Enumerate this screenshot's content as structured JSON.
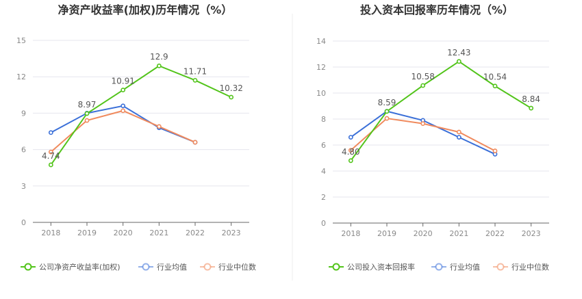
{
  "colors": {
    "company": "#52c41a",
    "industry_avg": "#3a6fd8",
    "industry_median": "#f08a5d",
    "grid": "#e6e6ee",
    "axis": "#666666",
    "divider": "#eeeeee"
  },
  "chart_data": [
    {
      "type": "line",
      "title": "净资产收益率(加权)历年情况（%）",
      "categories": [
        "2018",
        "2019",
        "2020",
        "2021",
        "2022",
        "2023"
      ],
      "yticks": [
        "0",
        "3",
        "6",
        "9",
        "12",
        "15"
      ],
      "ylim": [
        0,
        15
      ],
      "grid": true,
      "legend_position": "bottom",
      "series": [
        {
          "name": "公司净资产收益率(加权)",
          "key": "company",
          "values": [
            4.74,
            8.97,
            10.91,
            12.9,
            11.71,
            10.32
          ],
          "labels": [
            "4.74",
            "8.97",
            "10.91",
            "12.9",
            "11.71",
            "10.32"
          ]
        },
        {
          "name": "行业均值",
          "key": "industry_avg",
          "values": [
            7.4,
            9.0,
            9.6,
            7.8,
            6.6,
            null
          ]
        },
        {
          "name": "行业中位数",
          "key": "industry_median",
          "values": [
            5.8,
            8.4,
            9.2,
            7.9,
            6.6,
            null
          ]
        }
      ]
    },
    {
      "type": "line",
      "title": "投入资本回报率历年情况（%）",
      "categories": [
        "2018",
        "2019",
        "2020",
        "2021",
        "2022",
        "2023"
      ],
      "yticks": [
        "0",
        "2",
        "4",
        "6",
        "8",
        "10",
        "12",
        "14"
      ],
      "ylim": [
        0,
        14
      ],
      "grid": true,
      "legend_position": "bottom",
      "series": [
        {
          "name": "公司投入资本回报率",
          "key": "company",
          "values": [
            4.8,
            8.59,
            10.58,
            12.43,
            10.54,
            8.84
          ],
          "labels": [
            "4.80",
            "8.59",
            "10.58",
            "12.43",
            "10.54",
            "8.84"
          ]
        },
        {
          "name": "行业均值",
          "key": "industry_avg",
          "values": [
            6.6,
            8.6,
            7.9,
            6.6,
            5.3,
            null
          ]
        },
        {
          "name": "行业中位数",
          "key": "industry_median",
          "values": [
            5.6,
            8.05,
            7.65,
            7.0,
            5.55,
            null
          ]
        }
      ]
    }
  ]
}
